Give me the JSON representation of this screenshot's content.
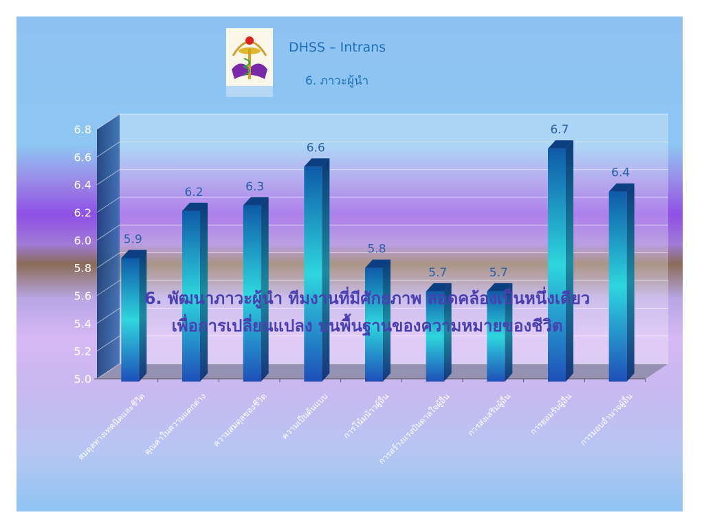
{
  "header": {
    "title": "DHSS – Intrans",
    "subtitle": "6. ภาวะผู้นำ"
  },
  "overlay": {
    "line1": "6. พัฒนาภาวะผู้นำ ทีมงานที่มีศักยภาพ สอดคล้องเป็นหนึ่งเดียว",
    "line2": "เพื่อการเปลี่ยนแปลง บนพื้นฐานของความหมายของชีวิต"
  },
  "colors": {
    "bar_top": "#0f5aa8",
    "bar_mid": "#2ed6de",
    "bar_bottom": "#1e4fb8",
    "label": "#2b5fa8"
  },
  "chart_data": {
    "type": "bar",
    "categories": [
      "สมดุลทางเทคนิคและชีวิต",
      "คุณค่าในความแตกต่าง",
      "ความสมดุลของชีวิต",
      "ความเป็นต้นแบบ",
      "การโน้มน้าวผู้อื่น",
      "การสร้างแรงบันดาลใจผู้อื่น",
      "การส่งเสริมผู้อื่น",
      "การยอมรับผู้อื่น",
      "การมอบอำนาจผู้อื่น"
    ],
    "values": [
      5.9,
      6.2,
      6.3,
      6.6,
      5.8,
      5.7,
      5.7,
      6.7,
      6.4
    ],
    "bar_heights": [
      5.9,
      6.24,
      6.28,
      6.56,
      5.83,
      5.66,
      5.66,
      6.69,
      6.38
    ],
    "yticks": [
      "5.0",
      "5.2",
      "5.4",
      "5.6",
      "5.8",
      "6.0",
      "6.2",
      "6.4",
      "6.6",
      "6.8"
    ],
    "ylim": [
      5.0,
      6.8
    ],
    "grid": true,
    "legend": "none"
  }
}
